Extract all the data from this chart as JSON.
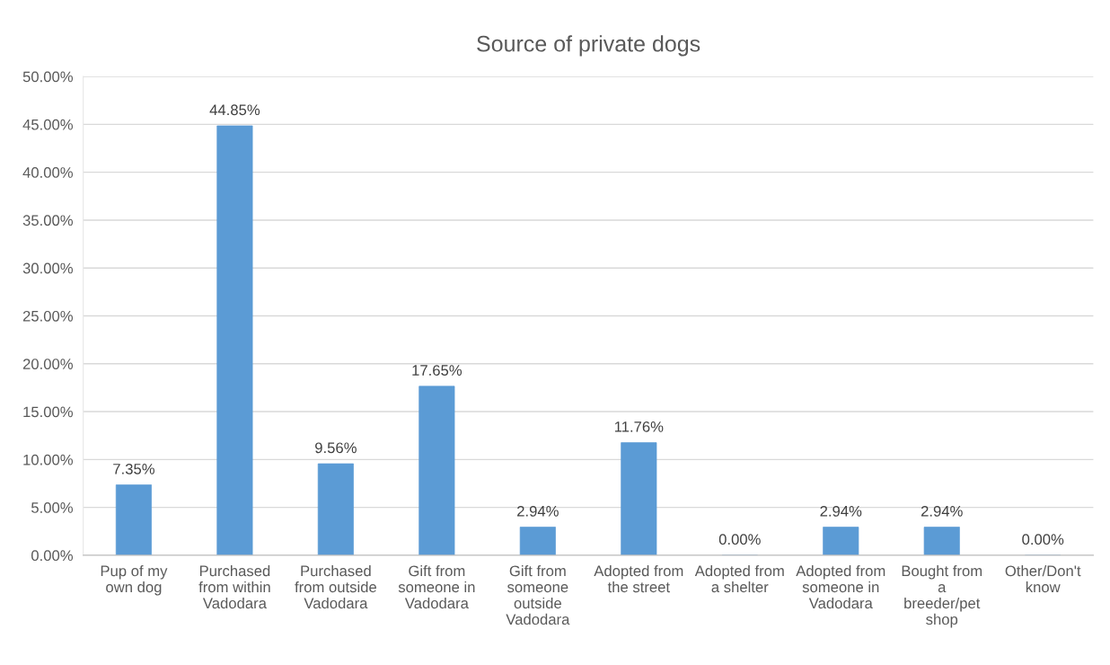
{
  "chart_data": {
    "type": "bar",
    "title": "Source of private dogs",
    "categories": [
      "Pup of my own dog",
      "Purchased from within Vadodara",
      "Purchased from outside Vadodara",
      "Gift from someone in Vadodara",
      "Gift from someone outside Vadodara",
      "Adopted from the street",
      "Adopted from a shelter",
      "Adopted from someone in Vadodara",
      "Bought from a breeder/pet shop",
      "Other/Don't know"
    ],
    "values": [
      7.35,
      44.85,
      9.56,
      17.65,
      2.94,
      11.76,
      0.0,
      2.94,
      2.94,
      0.0
    ],
    "value_labels": [
      "7.35%",
      "44.85%",
      "9.56%",
      "17.65%",
      "2.94%",
      "11.76%",
      "0.00%",
      "2.94%",
      "2.94%",
      "0.00%"
    ],
    "color": "#5b9bd5",
    "ylim": [
      0,
      50
    ],
    "yticks": [
      {
        "value": 0,
        "label": "0.00%"
      },
      {
        "value": 5,
        "label": "5.00%"
      },
      {
        "value": 10,
        "label": "10.00%"
      },
      {
        "value": 15,
        "label": "15.00%"
      },
      {
        "value": 20,
        "label": "20.00%"
      },
      {
        "value": 25,
        "label": "25.00%"
      },
      {
        "value": 30,
        "label": "30.00%"
      },
      {
        "value": 35,
        "label": "35.00%"
      },
      {
        "value": 40,
        "label": "40.00%"
      },
      {
        "value": 45,
        "label": "45.00%"
      },
      {
        "value": 50,
        "label": "50.00%"
      }
    ],
    "grid": "y"
  }
}
